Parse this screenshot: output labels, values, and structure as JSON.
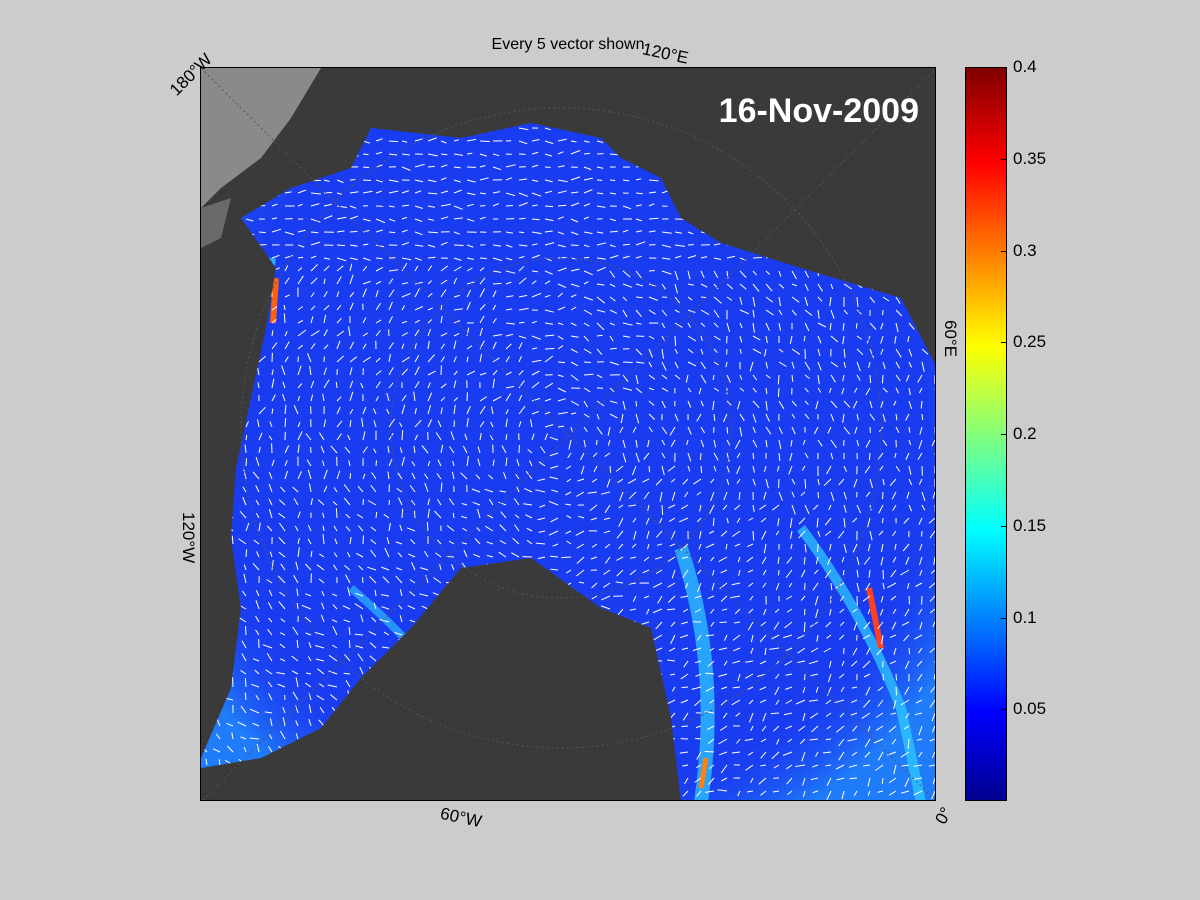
{
  "title": "Every 5 vector shown",
  "date": "16-Nov-2009",
  "longitude_labels": {
    "top_left": "180°W",
    "top_right": "120°E",
    "right": "60°E",
    "left": "120°W",
    "bottom": "60°W",
    "bottom_right": "0°"
  },
  "colorbar": {
    "colormap": "jet",
    "range": [
      0,
      0.4
    ],
    "ticks": [
      "0.4",
      "0.35",
      "0.3",
      "0.25",
      "0.2",
      "0.15",
      "0.1",
      "0.05"
    ],
    "tick_values": [
      0.4,
      0.35,
      0.3,
      0.25,
      0.2,
      0.15,
      0.1,
      0.05
    ]
  },
  "colors": {
    "figure_background": "#cccccc",
    "land": "#3a3a3a",
    "land_light": "#888888",
    "ocean_base": "#1a3cf0",
    "vectors": "#ffffff"
  }
}
